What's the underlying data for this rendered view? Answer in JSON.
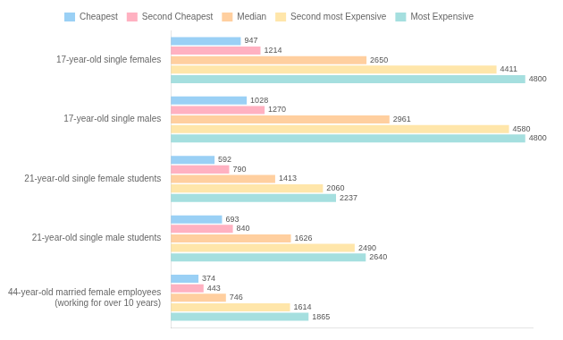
{
  "chart_data": {
    "type": "bar",
    "orientation": "horizontal",
    "categories": [
      "17-year-old single females",
      "17-year-old single males",
      "21-year-old single female students",
      "21-year-old single male students",
      "44-year-old married female employees\n(working for over 10 years)"
    ],
    "series": [
      {
        "name": "Cheapest",
        "values": [
          947,
          1028,
          592,
          693,
          374
        ]
      },
      {
        "name": "Second Cheapest",
        "values": [
          1214,
          1270,
          790,
          840,
          443
        ]
      },
      {
        "name": "Median",
        "values": [
          2650,
          2961,
          1413,
          1626,
          746
        ]
      },
      {
        "name": "Second most Expensive",
        "values": [
          4411,
          4580,
          2060,
          2490,
          1614
        ]
      },
      {
        "name": "Most Expensive",
        "values": [
          4800,
          4800,
          2237,
          2640,
          1865
        ]
      }
    ],
    "xlim": [
      0,
      4900
    ],
    "data_labels": true,
    "tick_labels": "y",
    "grid": false,
    "legend": "top"
  }
}
